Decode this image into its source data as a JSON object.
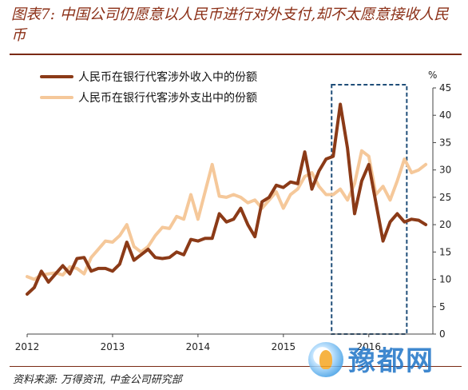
{
  "title": "图表7: 中国公司仍愿意以人民币进行对外支付,却不太愿意接收人民币",
  "source": "资料来源: 万得资讯, 中金公司研究部",
  "watermark": {
    "text": "豫都网",
    "icon": "yudu-logo-icon"
  },
  "colors": {
    "title": "#8b2f16",
    "series_receipts": "#8b3a17",
    "series_payments": "#f5c89a",
    "highlight_box": "#1f4e79"
  },
  "chart_data": {
    "type": "line",
    "title": "",
    "xlabel": "",
    "ylabel": "%",
    "ylim": [
      0,
      45
    ],
    "yticks": [
      0,
      5,
      10,
      15,
      20,
      25,
      30,
      35,
      40,
      45
    ],
    "y_axis_side": "right",
    "xlim": [
      2012.0,
      2016.75
    ],
    "xticks": [
      "2012",
      "2013",
      "2014",
      "2015",
      "2016"
    ],
    "legend": "top-left",
    "grid": false,
    "highlight_box": {
      "x_start": "2015-08",
      "x_end": "2016-06",
      "y_range": [
        0,
        45
      ],
      "style": "dashed"
    },
    "x": [
      "2012-01",
      "2012-02",
      "2012-03",
      "2012-04",
      "2012-05",
      "2012-06",
      "2012-07",
      "2012-08",
      "2012-09",
      "2012-10",
      "2012-11",
      "2012-12",
      "2013-01",
      "2013-02",
      "2013-03",
      "2013-04",
      "2013-05",
      "2013-06",
      "2013-07",
      "2013-08",
      "2013-09",
      "2013-10",
      "2013-11",
      "2013-12",
      "2014-01",
      "2014-02",
      "2014-03",
      "2014-04",
      "2014-05",
      "2014-06",
      "2014-07",
      "2014-08",
      "2014-09",
      "2014-10",
      "2014-11",
      "2014-12",
      "2015-01",
      "2015-02",
      "2015-03",
      "2015-04",
      "2015-05",
      "2015-06",
      "2015-07",
      "2015-08",
      "2015-09",
      "2015-10",
      "2015-11",
      "2015-12",
      "2016-01",
      "2016-02",
      "2016-03",
      "2016-04",
      "2016-05",
      "2016-06",
      "2016-07",
      "2016-08",
      "2016-09"
    ],
    "series": [
      {
        "name": "人民币在银行代客涉外收入中的份额",
        "color": "#8b3a17",
        "values": [
          7.3,
          8.5,
          11.5,
          9.5,
          11.0,
          12.5,
          11.0,
          13.8,
          14.0,
          11.5,
          12.0,
          12.0,
          11.5,
          12.8,
          16.8,
          13.5,
          14.5,
          15.5,
          14.0,
          13.8,
          14.0,
          15.0,
          14.5,
          17.3,
          17.0,
          17.5,
          17.5,
          22.0,
          20.5,
          21.0,
          23.0,
          20.0,
          17.8,
          24.2,
          25.0,
          27.2,
          26.8,
          27.8,
          27.5,
          33.3,
          26.5,
          29.8,
          32.0,
          32.5,
          42.0,
          34.0,
          22.0,
          28.0,
          31.0,
          24.0,
          17.0,
          20.5,
          22.0,
          20.5,
          21.0,
          20.8,
          20.0
        ]
      },
      {
        "name": "人民币在银行代客涉外支出中的份额",
        "color": "#f5c89a",
        "values": [
          10.5,
          10.0,
          10.8,
          11.0,
          11.2,
          10.8,
          12.3,
          12.0,
          11.0,
          14.0,
          15.5,
          17.0,
          16.8,
          18.0,
          20.0,
          16.0,
          15.0,
          16.0,
          18.0,
          19.5,
          19.3,
          21.5,
          21.0,
          25.5,
          21.0,
          26.0,
          31.0,
          25.2,
          25.0,
          25.5,
          25.0,
          24.0,
          24.5,
          23.0,
          24.5,
          26.0,
          23.0,
          25.5,
          26.5,
          28.8,
          29.5,
          27.0,
          25.5,
          25.5,
          26.5,
          24.5,
          27.5,
          33.5,
          32.5,
          25.5,
          27.0,
          24.5,
          28.0,
          32.0,
          29.5,
          30.0,
          31.0
        ]
      }
    ]
  }
}
